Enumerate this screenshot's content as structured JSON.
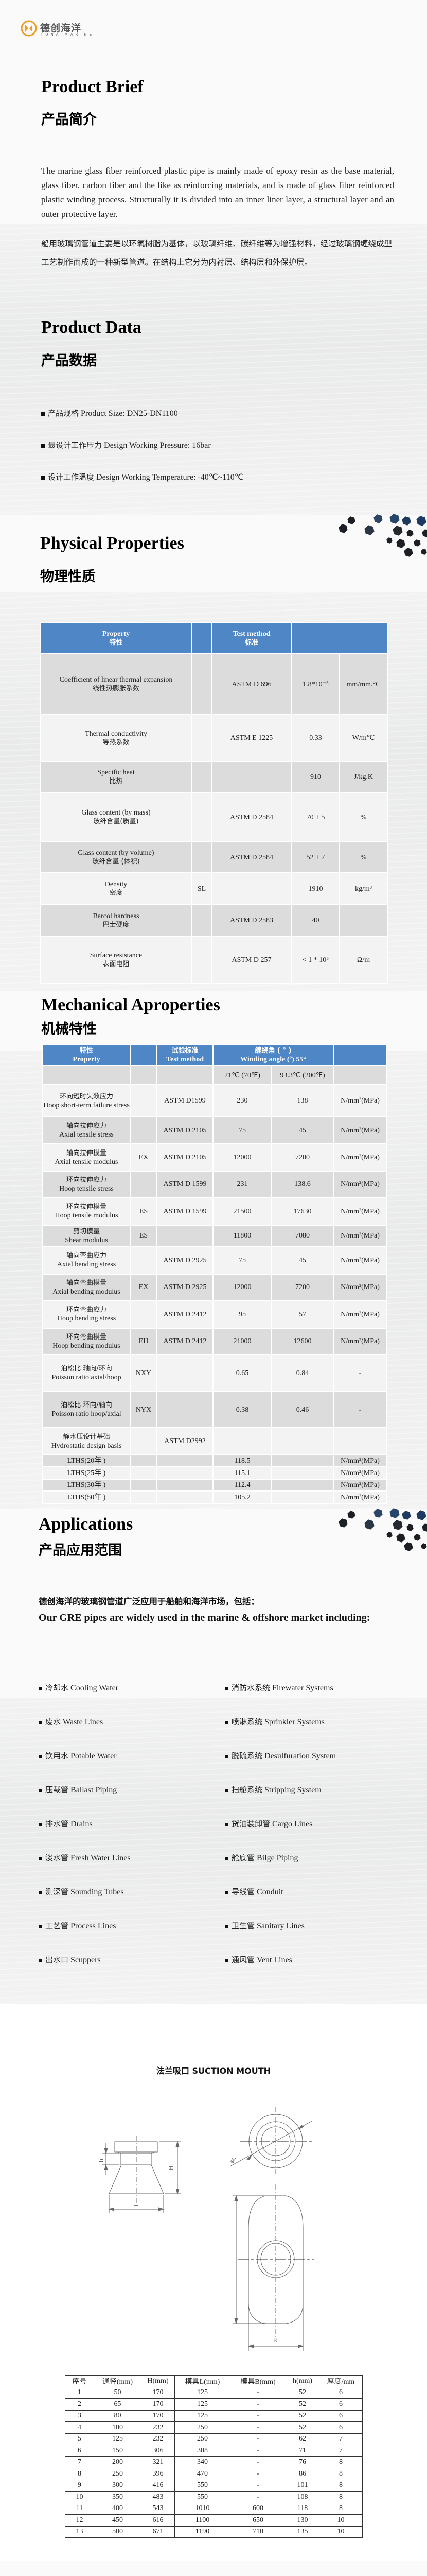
{
  "brand": {
    "name_cn": "德创海洋",
    "name_en": "TUNA MARINE",
    "accent": "#f39a1e"
  },
  "brief": {
    "title_en": "Product Brief",
    "title_cn": "产品简介",
    "text_en": "The marine glass fiber reinforced plastic pipe is mainly made of epoxy resin as the base material, glass fiber, carbon fiber and the like as reinforcing materials, and is made of glass fiber reinforced plastic winding process. Structurally it is divided into an inner liner layer, a structural layer and an outer protective layer.",
    "text_cn": "船用玻璃钢管道主要是以环氧树脂为基体，以玻璃纤维、碳纤维等为增强材料，经过玻璃钢缠绕成型工艺制作而成的一种新型管道。在结构上它分为内衬层、结构层和外保护层。"
  },
  "product_data": {
    "title_en": "Product Data",
    "title_cn": "产品数据",
    "items": [
      {
        "cn": "产品规格",
        "en": "Product Size: DN25-DN1100"
      },
      {
        "cn": "最设计工作压力",
        "en": "Design Working Pressure: 16bar"
      },
      {
        "cn": "设计工作温度",
        "en": "Design Working Temperature: -40℃~110℃"
      }
    ]
  },
  "physical": {
    "title_en": "Physical Properties",
    "title_cn": "物理性质",
    "header": {
      "property_en": "Property",
      "property_cn": "特性",
      "method_en": "Test method",
      "method_cn": "标准"
    },
    "header_color": "#4f86c6",
    "rows": [
      {
        "en": "Coefficient of linear thermal expansion",
        "cn": "线性热膨胀系数",
        "code": "",
        "method": "ASTM D  696",
        "value": "1.8*10⁻⁵",
        "unit": "mm/mm.°C"
      },
      {
        "en": "Thermal conductivity",
        "cn": "导热系数",
        "code": "",
        "method": "ASTM E 1225",
        "value": "0.33",
        "unit": "W/m℃"
      },
      {
        "en": "Specific heat",
        "cn": "比热",
        "code": "",
        "method": "",
        "value": "910",
        "unit": "J/kg.K"
      },
      {
        "en": "Glass content (by mass)",
        "cn": "玻纤含量(质量)",
        "code": "",
        "method": "ASTM D 2584",
        "value": "70 ± 5",
        "unit": "%"
      },
      {
        "en": "Glass content (by volume)",
        "cn": "玻纤含量 (体积)",
        "code": "",
        "method": "ASTM D 2584",
        "value": "52 ± 7",
        "unit": "%"
      },
      {
        "en": "Density",
        "cn": "密度",
        "code": "SL",
        "method": "",
        "value": "1910",
        "unit": "kg/m³"
      },
      {
        "en": "Barcol hardness",
        "cn": "巴士硬度",
        "code": "",
        "method": "ASTM D 2583",
        "value": "40",
        "unit": ""
      },
      {
        "en": "Surface resistance",
        "cn": "表面电阻",
        "code": "",
        "method": "ASTM D  257",
        "value": "< 1 * 10⁵",
        "unit": "Ω/m"
      }
    ]
  },
  "mechanical": {
    "title_en": "Mechanical Aproperties",
    "title_cn": "机械特性",
    "header": {
      "property_cn": "特性",
      "property_en": "Property",
      "method_cn": "试验标准",
      "method_en": "Test method",
      "angle_cn": "缠绕角 ( ° )",
      "angle_en": "Winding angle (º)  55°"
    },
    "temps": [
      "21℃ (70℉)",
      "93.3℃ (200℉)"
    ],
    "rows": [
      {
        "cn": "环向短时失效应力",
        "en": "Hoop short-term failure stress",
        "code": "",
        "method": "ASTM D1599",
        "v1": "230",
        "v2": "138",
        "unit": "N/mm²(MPa)"
      },
      {
        "cn": "轴向拉伸应力",
        "en": "Axial tensile stress",
        "code": "",
        "method": "ASTM D 2105",
        "v1": "75",
        "v2": "45",
        "unit": "N/mm²(MPa)"
      },
      {
        "cn": "轴向拉伸模量",
        "en": "Axial tensile modulus",
        "code": "EX",
        "method": "ASTM D 2105",
        "v1": "12000",
        "v2": "7200",
        "unit": "N/mm²(MPa)"
      },
      {
        "cn": "环向拉伸应力",
        "en": "Hoop tensile stress",
        "code": "",
        "method": "ASTM D 1599",
        "v1": "231",
        "v2": "138.6",
        "unit": "N/mm²(MPa)"
      },
      {
        "cn": "环向拉伸模量",
        "en": "Hoop tensile modulus",
        "code": "ES",
        "method": "ASTM D 1599",
        "v1": "21500",
        "v2": "17630",
        "unit": "N/mm²(MPa)"
      },
      {
        "cn": "剪切模量",
        "en": "Shear modulus",
        "code": "ES",
        "method": "",
        "v1": "11800",
        "v2": "7080",
        "unit": "N/mm²(MPa)"
      },
      {
        "cn": "轴向弯曲应力",
        "en": "Axial bending stress",
        "code": "",
        "method": "ASTM D 2925",
        "v1": "75",
        "v2": "45",
        "unit": "N/mm²(MPa)"
      },
      {
        "cn": "轴向弯曲模量",
        "en": "Axial bending modulus",
        "code": "EX",
        "method": "ASTM D 2925",
        "v1": "12000",
        "v2": "7200",
        "unit": "N/mm²(MPa)"
      },
      {
        "cn": "环向弯曲应力",
        "en": "Hoop bending stress",
        "code": "",
        "method": "ASTM D 2412",
        "v1": "95",
        "v2": "57",
        "unit": "N/mm²(MPa)"
      },
      {
        "cn": "环向弯曲模量",
        "en": "Hoop bending modulus",
        "code": "EH",
        "method": "ASTM D 2412",
        "v1": "21000",
        "v2": "12600",
        "unit": "N/mm²(MPa)"
      },
      {
        "cn": "泊松比 轴向/环向",
        "en": "Poisson ratio axial/hoop",
        "code": "NXY",
        "method": "",
        "v1": "0.65",
        "v2": "0.84",
        "unit": "-"
      },
      {
        "cn": "泊松比 环向/轴向",
        "en": "Poisson ratio hoop/axial",
        "code": "NYX",
        "method": "",
        "v1": "0.38",
        "v2": "0.46",
        "unit": "-"
      },
      {
        "cn": "静水压设计基础",
        "en": "Hydrostatic design basis",
        "code": "",
        "method": "ASTM D2992",
        "v1": "",
        "v2": "",
        "unit": ""
      },
      {
        "cn": "",
        "en": "LTHS(20年 )",
        "code": "",
        "method": "",
        "v1": "118.5",
        "v2": "",
        "unit": "N/mm²(MPa)"
      },
      {
        "cn": "",
        "en": "LTHS(25年 )",
        "code": "",
        "method": "",
        "v1": "115.1",
        "v2": "",
        "unit": "N/mm²(MPa)"
      },
      {
        "cn": "",
        "en": "LTHS(30年 )",
        "code": "",
        "method": "",
        "v1": "112.4",
        "v2": "",
        "unit": "N/mm²(MPa)"
      },
      {
        "cn": "",
        "en": "LTHS(50年 )",
        "code": "",
        "method": "",
        "v1": "105.2",
        "v2": "",
        "unit": "N/mm²(MPa)"
      }
    ]
  },
  "applications": {
    "title_en": "Applications",
    "title_cn": "产品应用范围",
    "intro_cn": "德创海洋的玻璃钢管道广泛应用于船舶和海洋市场，包括：",
    "intro_en": "Our GRE pipes are widely used in the marine & offshore market including:",
    "left": [
      {
        "cn": "冷却水",
        "en": "Cooling Water"
      },
      {
        "cn": "废水",
        "en": "Waste Lines"
      },
      {
        "cn": "饮用水",
        "en": "Potable Water"
      },
      {
        "cn": "压载管",
        "en": "Ballast Piping"
      },
      {
        "cn": "排水管",
        "en": "Drains"
      },
      {
        "cn": "淡水管",
        "en": "Fresh Water Lines"
      },
      {
        "cn": "测深管",
        "en": "Sounding Tubes"
      },
      {
        "cn": "工艺管",
        "en": "Process Lines"
      },
      {
        "cn": "出水口",
        "en": "Scuppers"
      }
    ],
    "right": [
      {
        "cn": "消防水系统",
        "en": "Firewater Systems"
      },
      {
        "cn": "喷淋系统",
        "en": "Sprinkler Systems"
      },
      {
        "cn": "脱硫系统",
        "en": "Desulfuration System"
      },
      {
        "cn": "扫舱系统",
        "en": "Stripping System"
      },
      {
        "cn": "货油装卸管",
        "en": "Cargo Lines"
      },
      {
        "cn": "舱底管",
        "en": "Bilge Piping"
      },
      {
        "cn": "导线管",
        "en": "Conduit"
      },
      {
        "cn": "卫生管",
        "en": "Sanitary Lines"
      },
      {
        "cn": "通风管",
        "en": "Vent Lines"
      }
    ]
  },
  "suction": {
    "title": "法兰吸口  SUCTION MOUTH",
    "dim_labels": {
      "H": "H",
      "h": "h",
      "L": "L",
      "phiL": "φL",
      "B": "B"
    },
    "columns": [
      "序号",
      "通径(mm)",
      "H(mm)",
      "模具L(mm)",
      "模具B(mm)",
      "h(mm)",
      "厚度/mm"
    ],
    "rows": [
      [
        "1",
        "50",
        "170",
        "125",
        "-",
        "52",
        "6"
      ],
      [
        "2",
        "65",
        "170",
        "125",
        "-",
        "52",
        "6"
      ],
      [
        "3",
        "80",
        "170",
        "125",
        "-",
        "52",
        "6"
      ],
      [
        "4",
        "100",
        "232",
        "250",
        "-",
        "52",
        "6"
      ],
      [
        "5",
        "125",
        "232",
        "250",
        "-",
        "62",
        "7"
      ],
      [
        "6",
        "150",
        "306",
        "308",
        "-",
        "71",
        "7"
      ],
      [
        "7",
        "200",
        "321",
        "340",
        "-",
        "76",
        "8"
      ],
      [
        "8",
        "250",
        "396",
        "470",
        "-",
        "86",
        "8"
      ],
      [
        "9",
        "300",
        "416",
        "550",
        "-",
        "101",
        "8"
      ],
      [
        "10",
        "350",
        "483",
        "550",
        "-",
        "108",
        "8"
      ],
      [
        "11",
        "400",
        "543",
        "1010",
        "600",
        "118",
        "8"
      ],
      [
        "12",
        "450",
        "616",
        "1100",
        "650",
        "130",
        "10"
      ],
      [
        "13",
        "500",
        "671",
        "1190",
        "710",
        "135",
        "10"
      ]
    ]
  }
}
